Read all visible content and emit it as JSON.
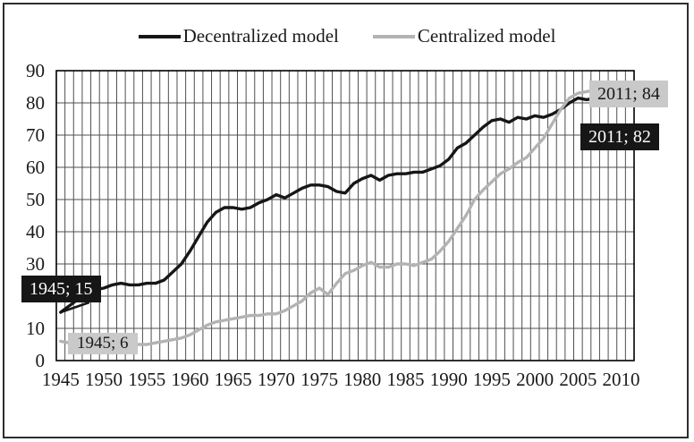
{
  "chart_data": {
    "type": "line",
    "title": "",
    "xlabel": "",
    "ylabel": "",
    "ylim": [
      0,
      90
    ],
    "grid": "vertical line per year, horizontal line per 10 units",
    "legend_position": "top-center",
    "colors": {
      "decentralized": "#161616",
      "centralized": "#b3b3b3",
      "grid": "#4f4f4f",
      "plot_border": "#000000",
      "dark_label_bg": "#161616",
      "dark_label_text": "#fdfdfd",
      "gray_label_bg": "#c9c9c9",
      "gray_label_text": "#1a1a1a"
    },
    "x": [
      1945,
      1946,
      1947,
      1948,
      1949,
      1950,
      1951,
      1952,
      1953,
      1954,
      1955,
      1956,
      1957,
      1958,
      1959,
      1960,
      1961,
      1962,
      1963,
      1964,
      1965,
      1966,
      1967,
      1968,
      1969,
      1970,
      1971,
      1972,
      1973,
      1974,
      1975,
      1976,
      1977,
      1978,
      1979,
      1980,
      1981,
      1982,
      1983,
      1984,
      1985,
      1986,
      1987,
      1988,
      1989,
      1990,
      1991,
      1992,
      1993,
      1994,
      1995,
      1996,
      1997,
      1998,
      1999,
      2000,
      2001,
      2002,
      2003,
      2004,
      2005,
      2006,
      2007,
      2008,
      2009,
      2010,
      2011
    ],
    "x_tick_labels": [
      "1945",
      "1950",
      "1955",
      "1960",
      "1965",
      "1970",
      "1975",
      "1980",
      "1985",
      "1990",
      "1995",
      "2000",
      "2005",
      "2010"
    ],
    "y_tick_labels": [
      "0",
      "10",
      "20",
      "30",
      "40",
      "50",
      "60",
      "70",
      "80",
      "90"
    ],
    "series": [
      {
        "key": "decentralized-line",
        "name": "Decentralized model",
        "color": "#161616",
        "values": [
          15,
          17,
          19,
          21,
          22,
          22.5,
          23.5,
          24,
          23.5,
          23.5,
          24,
          24,
          25,
          27.5,
          30,
          34,
          38.5,
          43,
          46,
          47.5,
          47.5,
          47,
          47.5,
          49,
          50,
          51.5,
          50.5,
          52,
          53.5,
          54.5,
          54.5,
          54,
          52.5,
          52,
          55,
          56.5,
          57.5,
          56,
          57.5,
          58,
          58,
          58.5,
          58.5,
          59.5,
          60.5,
          62.5,
          66,
          67.5,
          70,
          72.5,
          74.5,
          75,
          74,
          75.5,
          75,
          76,
          75.5,
          76.5,
          78,
          80,
          81.5,
          81,
          81.5,
          81,
          81.5,
          81.5,
          82
        ]
      },
      {
        "key": "centralized-line",
        "name": "Centralized model",
        "color": "#b3b3b3",
        "values": [
          6,
          5.5,
          5,
          5,
          5,
          4.5,
          4.5,
          4.5,
          5,
          5,
          5,
          5.5,
          6,
          6.5,
          7,
          8,
          9.5,
          11,
          12,
          12.5,
          13,
          13.5,
          14,
          14,
          14.5,
          14.5,
          15.5,
          17,
          18.5,
          21,
          22.5,
          20.5,
          24,
          27,
          28,
          29.5,
          30.5,
          29,
          29,
          30,
          30,
          29.5,
          30.5,
          31.5,
          34,
          37,
          41,
          45,
          50,
          53,
          55.5,
          58,
          59.5,
          61.5,
          63,
          66,
          69,
          73.5,
          78,
          81.5,
          83,
          83.5,
          84,
          84,
          84,
          84,
          84
        ]
      }
    ],
    "point_labels": {
      "decentralized_start": "1945; 15",
      "centralized_start": "1945; 6",
      "centralized_end": "2011; 84",
      "decentralized_end": "2011; 82"
    }
  }
}
